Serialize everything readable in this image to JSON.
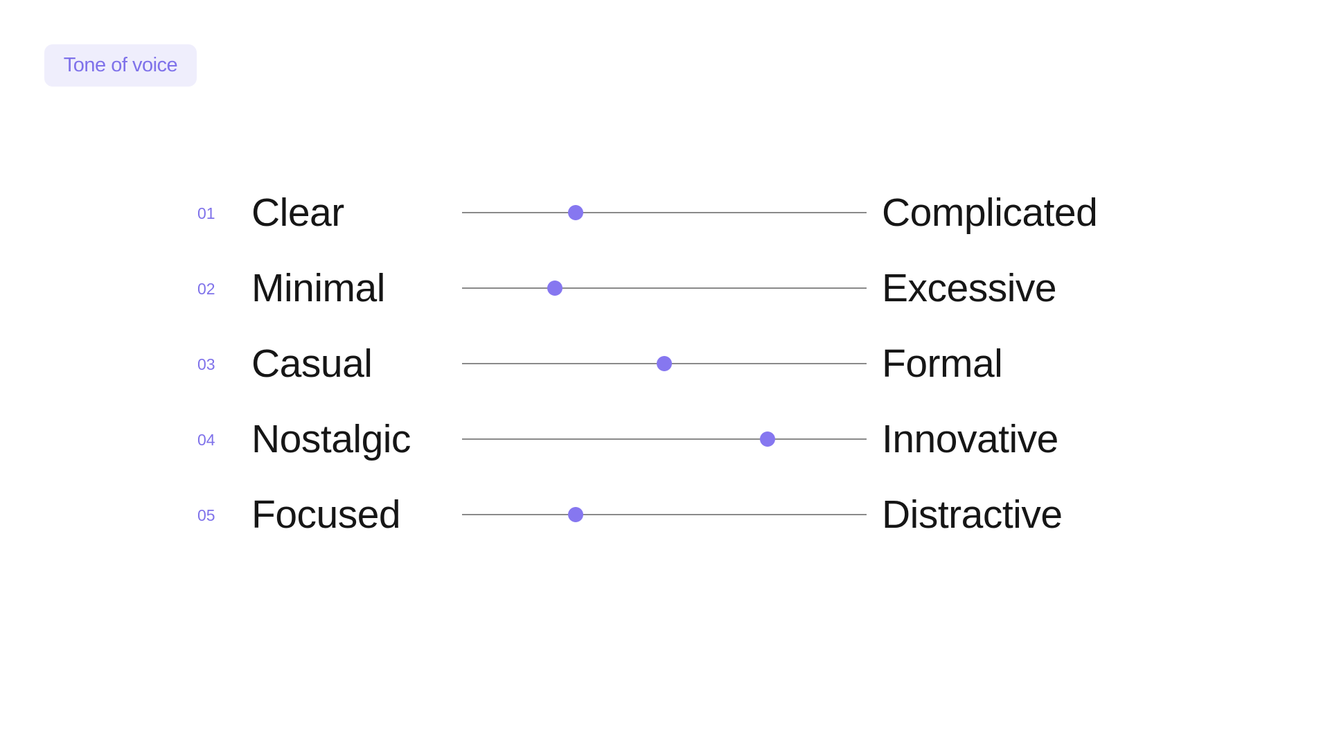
{
  "badge": {
    "label": "Tone of voice"
  },
  "accent": "#8677f0",
  "scales": [
    {
      "number": "01",
      "left": "Clear",
      "right": "Complicated",
      "value": 0.28
    },
    {
      "number": "02",
      "left": "Minimal",
      "right": "Excessive",
      "value": 0.23
    },
    {
      "number": "03",
      "left": "Casual",
      "right": "Formal",
      "value": 0.5
    },
    {
      "number": "04",
      "left": "Nostalgic",
      "right": "Innovative",
      "value": 0.755
    },
    {
      "number": "05",
      "left": "Focused",
      "right": "Distractive",
      "value": 0.28
    }
  ]
}
